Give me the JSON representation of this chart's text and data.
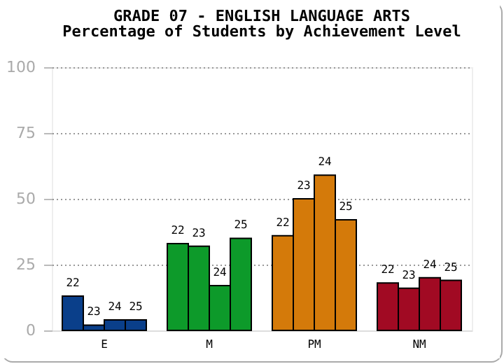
{
  "chart_data": {
    "type": "bar",
    "title": "GRADE 07 - ENGLISH LANGUAGE ARTS",
    "subtitle": "Percentage of Students by Achievement Level",
    "categories": [
      "E",
      "M",
      "PM",
      "NM"
    ],
    "series": [
      {
        "name": "22",
        "colors": [
          "#0a3f8a",
          "#0d9a2a",
          "#d47a0a",
          "#a10a23"
        ],
        "values": [
          13,
          33,
          36,
          18
        ]
      },
      {
        "name": "23",
        "colors": [
          "#0a3f8a",
          "#0d9a2a",
          "#d47a0a",
          "#a10a23"
        ],
        "values": [
          2,
          32,
          50,
          16
        ]
      },
      {
        "name": "24",
        "colors": [
          "#0a3f8a",
          "#0d9a2a",
          "#d47a0a",
          "#a10a23"
        ],
        "values": [
          4,
          17,
          59,
          20
        ]
      },
      {
        "name": "25",
        "colors": [
          "#0a3f8a",
          "#0d9a2a",
          "#d47a0a",
          "#a10a23"
        ],
        "values": [
          4,
          35,
          42,
          19
        ]
      }
    ],
    "ylim": [
      0,
      100
    ],
    "yticks": [
      0,
      25,
      50,
      75,
      100
    ],
    "grid": "y"
  }
}
